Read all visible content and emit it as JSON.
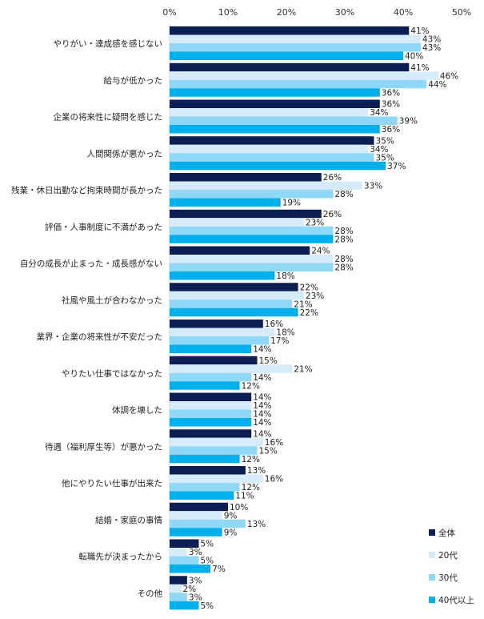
{
  "chart_data": {
    "type": "bar",
    "orientation": "horizontal",
    "xlim": [
      0,
      50
    ],
    "tick_labels": [
      "0%",
      "10%",
      "20%",
      "30%",
      "40%",
      "50%"
    ],
    "value_suffix": "%",
    "categories": [
      "やりがい・達成感を感じない",
      "給与が低かった",
      "企業の将来性に疑問を感じた",
      "人間関係が悪かった",
      "残業・休日出勤など拘束時間が長かった",
      "評価・人事制度に不満があった",
      "自分の成長が止まった・成長感がない",
      "社風や風土が合わなかった",
      "業界・企業の将来性が不安だった",
      "やりたい仕事ではなかった",
      "体調を壊した",
      "待遇（福利厚生等）が悪かった",
      "他にやりたい仕事が出来た",
      "結婚・家庭の事情",
      "転職先が決まったから",
      "その他"
    ],
    "series": [
      {
        "name": "全体",
        "color": "#0b1f55",
        "values": [
          41,
          41,
          36,
          35,
          26,
          26,
          24,
          22,
          16,
          15,
          14,
          14,
          13,
          10,
          5,
          3
        ]
      },
      {
        "name": "20代",
        "color": "#d6ecfb",
        "values": [
          43,
          46,
          34,
          34,
          33,
          23,
          28,
          23,
          18,
          21,
          14,
          16,
          16,
          9,
          3,
          2
        ]
      },
      {
        "name": "30代",
        "color": "#8fd8f8",
        "values": [
          43,
          44,
          39,
          35,
          28,
          28,
          28,
          21,
          17,
          14,
          14,
          15,
          12,
          13,
          5,
          3
        ]
      },
      {
        "name": "40代以上",
        "color": "#00b0ec",
        "values": [
          40,
          36,
          36,
          37,
          19,
          28,
          18,
          22,
          14,
          12,
          14,
          12,
          11,
          9,
          7,
          5
        ]
      }
    ],
    "legend_position": "bottom-right",
    "grid": false
  }
}
